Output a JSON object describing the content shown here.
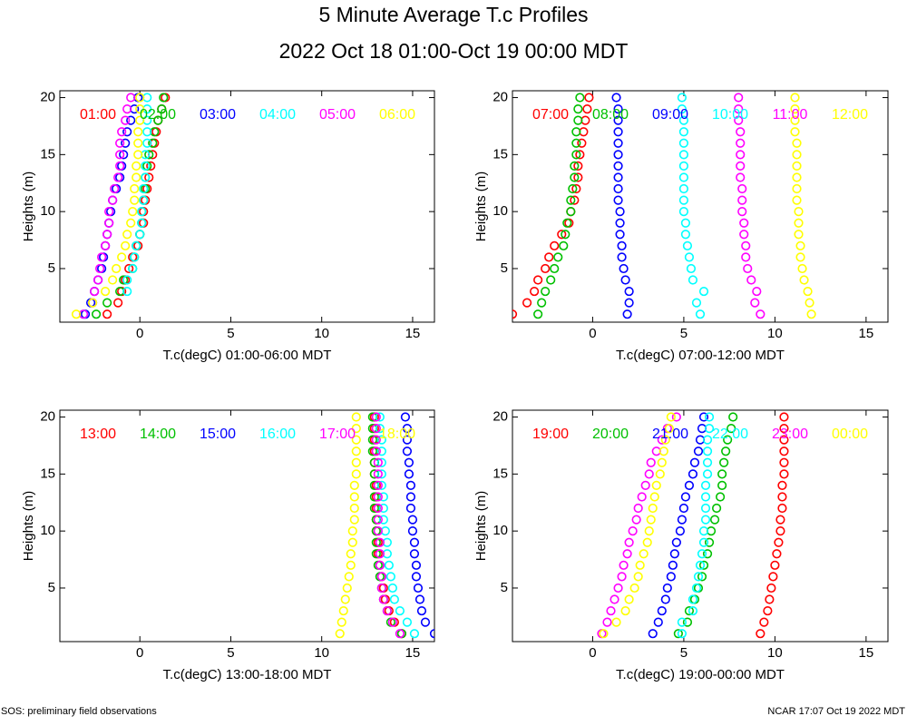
{
  "title": "5 Minute Average T.c Profiles",
  "subtitle": "2022 Oct 18 01:00-Oct 19 00:00 MDT",
  "footer_left": "SOS: preliminary field observations",
  "footer_right": "NCAR 17:07 Oct 19 2022 MDT",
  "chart_data": [
    {
      "type": "scatter",
      "xlabel": "T.c(degC) 01:00-06:00 MDT",
      "ylabel": "Heights (m)",
      "xlim": [
        -4.4,
        16.2
      ],
      "ylim": [
        0.3,
        20.6
      ],
      "xticks": [
        0,
        5,
        10,
        15
      ],
      "yticks": [
        5,
        10,
        15,
        20
      ],
      "y": [
        1,
        2,
        3,
        4,
        5,
        6,
        7,
        8,
        9,
        10,
        11,
        12,
        13,
        14,
        15,
        16,
        17,
        18,
        19,
        20
      ],
      "series": [
        {
          "name": "01:00",
          "color": "#ff0000",
          "x": [
            -1.8,
            -1.2,
            -1.0,
            -0.8,
            -0.6,
            -0.4,
            -0.1,
            0.0,
            0.2,
            0.2,
            0.3,
            0.4,
            0.5,
            0.6,
            0.7,
            0.8,
            0.9,
            1.0,
            1.2,
            1.4
          ]
        },
        {
          "name": "02:00",
          "color": "#00c000",
          "x": [
            -2.4,
            -1.8,
            -1.1,
            -0.9,
            -0.4,
            -0.3,
            -0.2,
            0.0,
            0.1,
            0.1,
            0.2,
            0.3,
            0.3,
            0.4,
            0.5,
            0.7,
            0.8,
            1.0,
            1.2,
            1.3
          ]
        },
        {
          "name": "03:00",
          "color": "#0000ff",
          "x": [
            -3.0,
            -2.7,
            -2.5,
            -2.3,
            -2.1,
            -2.0,
            -1.9,
            -1.8,
            -1.7,
            -1.6,
            -1.5,
            -1.3,
            -1.1,
            -1.0,
            -0.9,
            -0.8,
            -0.7,
            -0.5,
            -0.3,
            -0.1
          ]
        },
        {
          "name": "04:00",
          "color": "#00ffff",
          "x": [
            -3.1,
            -2.6,
            -0.7,
            -0.7,
            -0.4,
            -0.3,
            -0.2,
            0.0,
            0.1,
            0.1,
            0.2,
            0.2,
            0.3,
            0.3,
            0.3,
            0.4,
            0.4,
            0.4,
            0.4,
            0.4
          ]
        },
        {
          "name": "05:00",
          "color": "#ff00ff",
          "x": [
            -3.1,
            -2.6,
            -2.5,
            -2.3,
            -2.2,
            -2.1,
            -1.9,
            -1.8,
            -1.7,
            -1.7,
            -1.5,
            -1.4,
            -1.2,
            -1.1,
            -1.1,
            -1.1,
            -1.0,
            -0.8,
            -0.7,
            -0.5
          ]
        },
        {
          "name": "06:00",
          "color": "#ffff00",
          "x": [
            -3.5,
            -2.6,
            -1.9,
            -1.5,
            -1.3,
            -1.0,
            -0.8,
            -0.7,
            -0.5,
            -0.4,
            -0.3,
            -0.3,
            -0.2,
            -0.2,
            -0.1,
            -0.1,
            -0.1,
            0.0,
            0.0,
            0.0
          ]
        }
      ]
    },
    {
      "type": "scatter",
      "xlabel": "T.c(degC) 07:00-12:00 MDT",
      "ylabel": "Heights (m)",
      "xlim": [
        -4.4,
        16.2
      ],
      "ylim": [
        0.3,
        20.6
      ],
      "xticks": [
        0,
        5,
        10,
        15
      ],
      "yticks": [
        5,
        10,
        15,
        20
      ],
      "y": [
        1,
        2,
        3,
        4,
        5,
        6,
        7,
        8,
        9,
        10,
        11,
        12,
        13,
        14,
        15,
        16,
        17,
        18,
        19,
        20
      ],
      "series": [
        {
          "name": "07:00",
          "color": "#ff0000",
          "x": [
            -4.4,
            -3.6,
            -3.2,
            -3.0,
            -2.6,
            -2.4,
            -2.1,
            -1.7,
            -1.3,
            -1.2,
            -1.0,
            -0.9,
            -0.8,
            -0.8,
            -0.7,
            -0.6,
            -0.5,
            -0.4,
            -0.3,
            -0.2
          ]
        },
        {
          "name": "08:00",
          "color": "#00c000",
          "x": [
            -3.0,
            -2.8,
            -2.6,
            -2.3,
            -2.1,
            -1.9,
            -1.6,
            -1.5,
            -1.4,
            -1.2,
            -1.2,
            -1.1,
            -1.0,
            -1.0,
            -0.9,
            -0.9,
            -0.9,
            -0.8,
            -0.8,
            -0.7
          ]
        },
        {
          "name": "09:00",
          "color": "#0000ff",
          "x": [
            1.9,
            2.0,
            2.0,
            1.8,
            1.7,
            1.6,
            1.6,
            1.5,
            1.5,
            1.5,
            1.4,
            1.4,
            1.4,
            1.4,
            1.4,
            1.4,
            1.4,
            1.4,
            1.4,
            1.3
          ]
        },
        {
          "name": "10:00",
          "color": "#00ffff",
          "x": [
            5.9,
            5.7,
            6.1,
            5.5,
            5.4,
            5.3,
            5.2,
            5.1,
            5.1,
            5.0,
            5.0,
            5.0,
            5.0,
            5.0,
            5.0,
            5.0,
            5.0,
            5.0,
            4.9,
            4.9
          ]
        },
        {
          "name": "11:00",
          "color": "#ff00ff",
          "x": [
            9.2,
            8.9,
            9.0,
            8.7,
            8.5,
            8.4,
            8.4,
            8.3,
            8.3,
            8.2,
            8.2,
            8.2,
            8.1,
            8.1,
            8.1,
            8.1,
            8.1,
            8.0,
            8.0,
            8.0
          ]
        },
        {
          "name": "12:00",
          "color": "#ffff00",
          "x": [
            12.0,
            11.9,
            11.8,
            11.6,
            11.5,
            11.4,
            11.4,
            11.3,
            11.3,
            11.3,
            11.2,
            11.2,
            11.2,
            11.2,
            11.2,
            11.2,
            11.1,
            11.1,
            11.1,
            11.1
          ]
        }
      ]
    },
    {
      "type": "scatter",
      "xlabel": "T.c(degC) 13:00-18:00 MDT",
      "ylabel": "Heights (m)",
      "xlim": [
        -4.4,
        16.2
      ],
      "ylim": [
        0.3,
        20.6
      ],
      "xticks": [
        0,
        5,
        10,
        15
      ],
      "yticks": [
        5,
        10,
        15,
        20
      ],
      "y": [
        1,
        2,
        3,
        4,
        5,
        6,
        7,
        8,
        9,
        10,
        11,
        12,
        13,
        14,
        15,
        16,
        17,
        18,
        19,
        20
      ],
      "series": [
        {
          "name": "13:00",
          "color": "#ff0000",
          "x": [
            14.4,
            14.0,
            13.7,
            13.5,
            13.4,
            13.3,
            13.2,
            13.1,
            13.1,
            13.0,
            13.0,
            13.0,
            13.0,
            13.0,
            12.9,
            12.9,
            12.9,
            12.9,
            12.9,
            12.9
          ]
        },
        {
          "name": "14:00",
          "color": "#00c000",
          "x": [
            14.4,
            13.8,
            13.6,
            13.4,
            13.3,
            13.2,
            13.1,
            13.0,
            13.0,
            13.0,
            13.0,
            12.9,
            12.9,
            12.9,
            12.9,
            12.9,
            12.8,
            12.8,
            12.8,
            12.8
          ]
        },
        {
          "name": "15:00",
          "color": "#0000ff",
          "x": [
            16.2,
            15.7,
            15.5,
            15.4,
            15.3,
            15.2,
            15.2,
            15.1,
            15.1,
            15.0,
            15.0,
            14.9,
            14.9,
            14.9,
            14.8,
            14.8,
            14.7,
            14.7,
            14.7,
            14.6
          ]
        },
        {
          "name": "16:00",
          "color": "#00ffff",
          "x": [
            15.1,
            14.7,
            14.3,
            14.0,
            13.9,
            13.8,
            13.7,
            13.6,
            13.6,
            13.5,
            13.4,
            13.4,
            13.4,
            13.3,
            13.3,
            13.3,
            13.3,
            13.3,
            13.2,
            13.2
          ]
        },
        {
          "name": "17:00",
          "color": "#ff00ff",
          "x": [
            14.3,
            13.9,
            13.6,
            13.4,
            13.3,
            13.3,
            13.2,
            13.2,
            13.2,
            13.1,
            13.1,
            13.1,
            13.1,
            13.1,
            13.1,
            13.1,
            13.0,
            13.0,
            13.0,
            13.0
          ]
        },
        {
          "name": "18:00",
          "color": "#ffff00",
          "x": [
            11.0,
            11.1,
            11.2,
            11.3,
            11.4,
            11.5,
            11.6,
            11.6,
            11.7,
            11.7,
            11.8,
            11.8,
            11.8,
            11.8,
            11.9,
            11.9,
            11.9,
            11.9,
            11.9,
            11.9
          ]
        }
      ]
    },
    {
      "type": "scatter",
      "xlabel": "T.c(degC) 19:00-00:00 MDT",
      "ylabel": "Heights (m)",
      "xlim": [
        -4.4,
        16.2
      ],
      "ylim": [
        0.3,
        20.6
      ],
      "xticks": [
        0,
        5,
        10,
        15
      ],
      "yticks": [
        5,
        10,
        15,
        20
      ],
      "y": [
        1,
        2,
        3,
        4,
        5,
        6,
        7,
        8,
        9,
        10,
        11,
        12,
        13,
        14,
        15,
        16,
        17,
        18,
        19,
        20
      ],
      "series": [
        {
          "name": "19:00",
          "color": "#ff0000",
          "x": [
            9.2,
            9.4,
            9.6,
            9.7,
            9.8,
            9.9,
            10.0,
            10.1,
            10.2,
            10.3,
            10.3,
            10.4,
            10.4,
            10.4,
            10.5,
            10.5,
            10.5,
            10.5,
            10.5,
            10.5
          ]
        },
        {
          "name": "20:00",
          "color": "#00c000",
          "x": [
            4.7,
            5.2,
            5.3,
            5.6,
            5.8,
            6.0,
            6.1,
            6.3,
            6.4,
            6.5,
            6.7,
            6.8,
            7.0,
            7.1,
            7.1,
            7.2,
            7.3,
            7.4,
            7.6,
            7.7
          ]
        },
        {
          "name": "21:00",
          "color": "#0000ff",
          "x": [
            3.3,
            3.6,
            3.8,
            4.0,
            4.1,
            4.3,
            4.4,
            4.5,
            4.6,
            4.8,
            4.9,
            5.0,
            5.1,
            5.3,
            5.5,
            5.6,
            5.8,
            5.9,
            6.0,
            6.1
          ]
        },
        {
          "name": "22:00",
          "color": "#00ffff",
          "x": [
            4.9,
            4.9,
            5.5,
            5.5,
            5.7,
            5.8,
            5.9,
            6.0,
            6.1,
            6.1,
            6.2,
            6.2,
            6.2,
            6.2,
            6.3,
            6.3,
            6.3,
            6.3,
            6.4,
            6.4
          ]
        },
        {
          "name": "23:00",
          "color": "#ff00ff",
          "x": [
            0.5,
            0.8,
            1.0,
            1.2,
            1.4,
            1.6,
            1.7,
            1.9,
            2.0,
            2.2,
            2.4,
            2.5,
            2.7,
            2.9,
            3.1,
            3.2,
            3.5,
            3.8,
            4.1,
            4.6
          ]
        },
        {
          "name": "00:00",
          "color": "#ffff00",
          "x": [
            0.6,
            1.3,
            1.8,
            2.0,
            2.3,
            2.5,
            2.6,
            2.8,
            3.0,
            3.1,
            3.2,
            3.3,
            3.4,
            3.5,
            3.7,
            3.8,
            3.9,
            4.0,
            4.2,
            4.3
          ]
        }
      ]
    }
  ]
}
